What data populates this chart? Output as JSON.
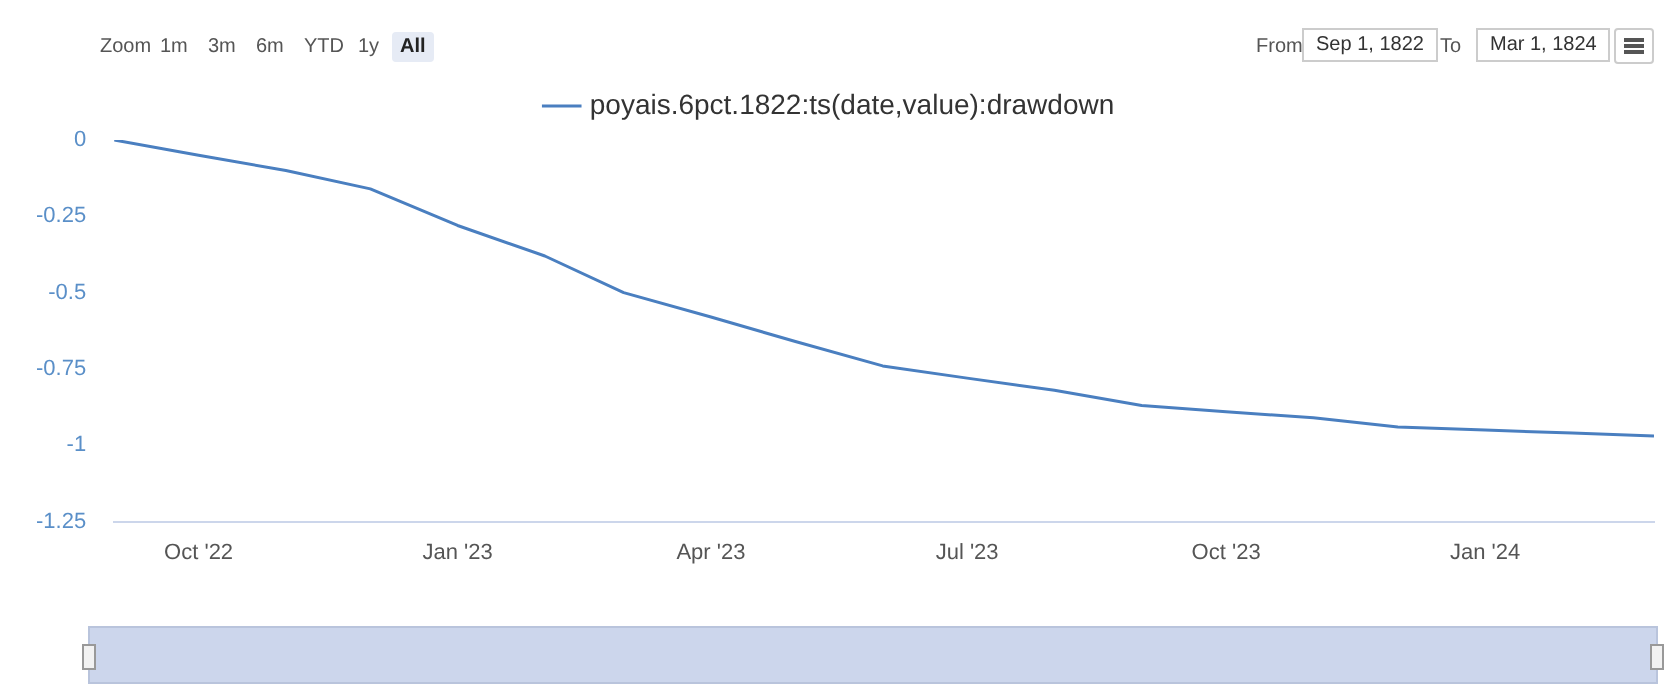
{
  "chart_data": {
    "type": "line",
    "x": [
      "1822-09-01",
      "1822-10-01",
      "1822-11-01",
      "1822-12-01",
      "1823-01-01",
      "1823-02-01",
      "1823-03-01",
      "1823-04-01",
      "1823-05-01",
      "1823-06-01",
      "1823-07-01",
      "1823-08-01",
      "1823-09-01",
      "1823-10-01",
      "1823-11-01",
      "1823-12-01",
      "1824-01-01",
      "1824-02-01",
      "1824-03-01"
    ],
    "series": [
      {
        "name": "poyais.6pct.1822:ts(date,value):drawdown",
        "color": "#4a7fc0",
        "values": [
          0,
          -0.05,
          -0.1,
          -0.16,
          -0.28,
          -0.38,
          -0.5,
          -0.58,
          -0.66,
          -0.74,
          -0.78,
          -0.82,
          -0.87,
          -0.89,
          -0.91,
          -0.94,
          -0.95,
          -0.96,
          -0.97
        ]
      }
    ],
    "xlim": [
      "1822-09-01",
      "1824-03-01"
    ],
    "xticks": [
      {
        "value": "1822-10-01",
        "label": "Oct '22"
      },
      {
        "value": "1823-01-01",
        "label": "Jan '23"
      },
      {
        "value": "1823-04-01",
        "label": "Apr '23"
      },
      {
        "value": "1823-07-01",
        "label": "Jul '23"
      },
      {
        "value": "1823-10-01",
        "label": "Oct '23"
      },
      {
        "value": "1824-01-01",
        "label": "Jan '24"
      }
    ],
    "ylim": [
      -1.25,
      0
    ],
    "yticks": [
      0,
      -0.25,
      -0.5,
      -0.75,
      -1,
      -1.25
    ],
    "legend": "top",
    "marker": "none",
    "line_style": "solid",
    "annotations": [
      "Zoom",
      "1m",
      "3m",
      "6m",
      "YTD",
      "1y",
      "All",
      "From",
      "Sep 1, 1822",
      "To",
      "Mar 1, 1824"
    ]
  }
}
